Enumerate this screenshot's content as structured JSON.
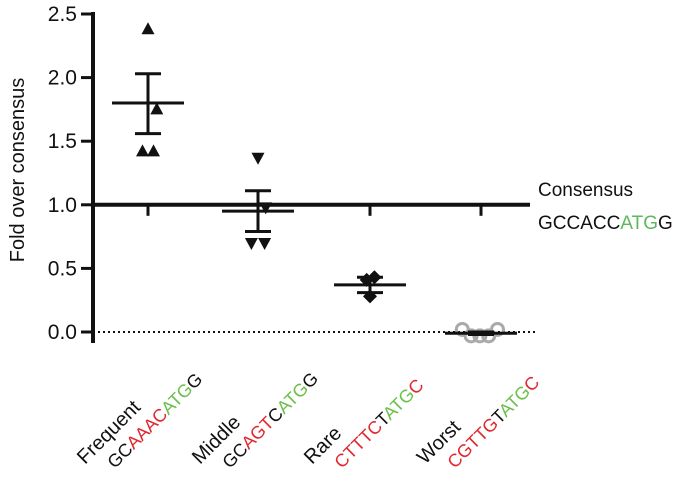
{
  "chart_data": {
    "type": "scatter",
    "ylabel": "Fold over consensus",
    "ylim": [
      0,
      2.5
    ],
    "yticks": [
      "0.0",
      "0.5",
      "1.0",
      "1.5",
      "2.0",
      "2.5"
    ],
    "reference_line": {
      "y": 1.0,
      "label": "Consensus",
      "sequence": [
        {
          "text": "GCCACC",
          "color": "#111111"
        },
        {
          "text": "ATG",
          "color": "#5cb85c"
        },
        {
          "text": "G",
          "color": "#111111"
        }
      ]
    },
    "baseline": {
      "y": 0.0,
      "style": "dotted"
    },
    "colors": {
      "red": "#e0282e",
      "green": "#6bbf4a",
      "black": "#111111",
      "gray": "#aaaaaa"
    },
    "categories": [
      {
        "name": "Frequent",
        "sequence": [
          {
            "text": "GC",
            "color": "#111111"
          },
          {
            "text": "AAAC",
            "color": "#e0282e"
          },
          {
            "text": "ATG",
            "color": "#6bbf4a"
          },
          {
            "text": "G",
            "color": "#111111"
          }
        ],
        "marker": "triangle-up",
        "points": [
          2.38,
          1.75,
          1.42,
          1.42
        ],
        "mean": 1.8,
        "sem_upper": 2.03,
        "sem_lower": 1.56
      },
      {
        "name": "Middle",
        "sequence": [
          {
            "text": "GC",
            "color": "#111111"
          },
          {
            "text": "AGT",
            "color": "#e0282e"
          },
          {
            "text": "C",
            "color": "#111111"
          },
          {
            "text": "ATG",
            "color": "#6bbf4a"
          },
          {
            "text": "G",
            "color": "#111111"
          }
        ],
        "marker": "triangle-down",
        "points": [
          1.37,
          0.98,
          0.7,
          0.7
        ],
        "mean": 0.95,
        "sem_upper": 1.11,
        "sem_lower": 0.79
      },
      {
        "name": "Rare",
        "sequence": [
          {
            "text": "CTTTC",
            "color": "#e0282e"
          },
          {
            "text": "T",
            "color": "#111111"
          },
          {
            "text": "ATG",
            "color": "#6bbf4a"
          },
          {
            "text": "C",
            "color": "#e0282e"
          }
        ],
        "marker": "diamond",
        "points": [
          0.43,
          0.41,
          0.28
        ],
        "mean": 0.37,
        "sem_upper": 0.43,
        "sem_lower": 0.31
      },
      {
        "name": "Worst",
        "sequence": [
          {
            "text": "CGTTG",
            "color": "#e0282e"
          },
          {
            "text": "T",
            "color": "#111111"
          },
          {
            "text": "ATG",
            "color": "#6bbf4a"
          },
          {
            "text": "C",
            "color": "#e0282e"
          }
        ],
        "marker": "circle-open",
        "points": [
          0.02,
          -0.03,
          -0.03,
          -0.03,
          0.02
        ],
        "mean": -0.01,
        "sem_upper": 0.0,
        "sem_lower": -0.02
      }
    ]
  }
}
